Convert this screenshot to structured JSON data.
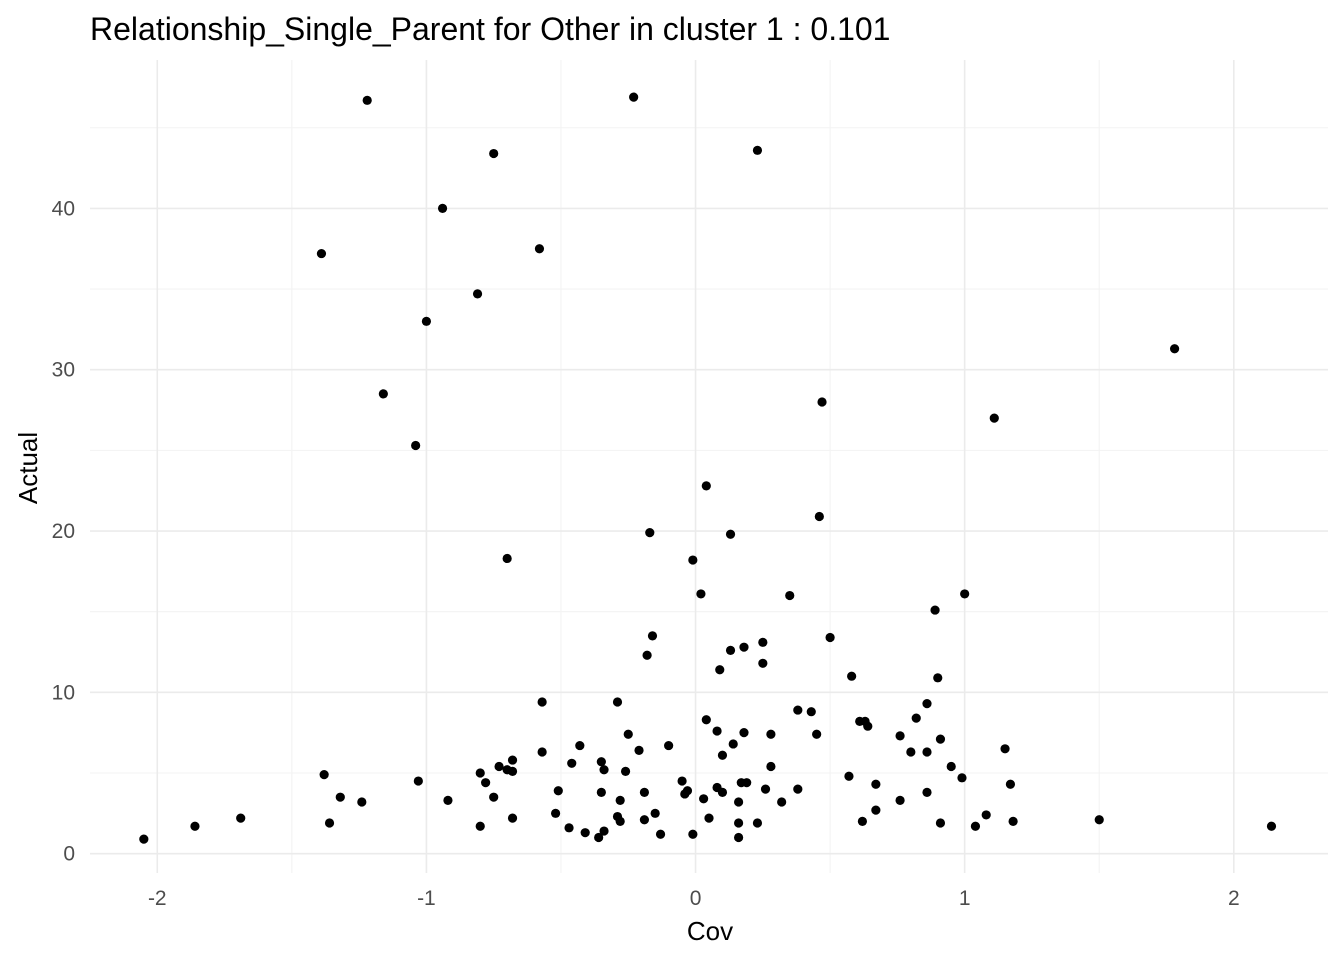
{
  "chart_data": {
    "type": "scatter",
    "title": "Relationship_Single_Parent for Other in cluster 1 : 0.101",
    "xlabel": "Cov",
    "ylabel": "Actual",
    "xlim": [
      -2.25,
      2.35
    ],
    "ylim": [
      -1.2,
      49.2
    ],
    "x_ticks": [
      -2,
      -1,
      0,
      1,
      2
    ],
    "x_tick_labels": [
      "-2",
      "-1",
      "0",
      "1",
      "2"
    ],
    "y_ticks": [
      0,
      10,
      20,
      30,
      40
    ],
    "y_tick_labels": [
      "0",
      "10",
      "20",
      "30",
      "40"
    ],
    "grid": true,
    "theme": "minimal",
    "point_color": "#000000",
    "grid_color": "#ebebeb",
    "series": [
      {
        "points": [
          [
            -2.05,
            0.9
          ],
          [
            -1.86,
            1.7
          ],
          [
            -1.69,
            2.2
          ],
          [
            -1.39,
            37.2
          ],
          [
            -1.38,
            4.9
          ],
          [
            -1.36,
            1.9
          ],
          [
            -1.32,
            3.5
          ],
          [
            -1.24,
            3.2
          ],
          [
            -1.22,
            46.7
          ],
          [
            -1.16,
            28.5
          ],
          [
            -1.04,
            25.3
          ],
          [
            -1.03,
            4.5
          ],
          [
            -1.0,
            33.0
          ],
          [
            -0.94,
            40.0
          ],
          [
            -0.92,
            3.3
          ],
          [
            -0.81,
            34.7
          ],
          [
            -0.8,
            1.7
          ],
          [
            -0.8,
            5.0
          ],
          [
            -0.78,
            4.4
          ],
          [
            -0.75,
            43.4
          ],
          [
            -0.75,
            3.5
          ],
          [
            -0.73,
            5.4
          ],
          [
            -0.7,
            5.2
          ],
          [
            -0.7,
            18.3
          ],
          [
            -0.68,
            5.1
          ],
          [
            -0.68,
            5.8
          ],
          [
            -0.68,
            2.2
          ],
          [
            -0.58,
            37.5
          ],
          [
            -0.57,
            9.4
          ],
          [
            -0.57,
            6.3
          ],
          [
            -0.52,
            2.5
          ],
          [
            -0.51,
            3.9
          ],
          [
            -0.47,
            1.6
          ],
          [
            -0.46,
            5.6
          ],
          [
            -0.43,
            6.7
          ],
          [
            -0.41,
            1.3
          ],
          [
            -0.36,
            1.0
          ],
          [
            -0.35,
            5.7
          ],
          [
            -0.35,
            3.8
          ],
          [
            -0.34,
            5.2
          ],
          [
            -0.34,
            1.4
          ],
          [
            -0.29,
            9.4
          ],
          [
            -0.29,
            2.3
          ],
          [
            -0.28,
            3.3
          ],
          [
            -0.28,
            2.0
          ],
          [
            -0.26,
            5.1
          ],
          [
            -0.25,
            7.4
          ],
          [
            -0.23,
            46.9
          ],
          [
            -0.21,
            6.4
          ],
          [
            -0.19,
            3.8
          ],
          [
            -0.19,
            2.1
          ],
          [
            -0.18,
            12.3
          ],
          [
            -0.17,
            19.9
          ],
          [
            -0.16,
            13.5
          ],
          [
            -0.15,
            2.5
          ],
          [
            -0.13,
            1.2
          ],
          [
            -0.1,
            6.7
          ],
          [
            -0.05,
            4.5
          ],
          [
            -0.04,
            3.7
          ],
          [
            -0.03,
            3.9
          ],
          [
            -0.01,
            1.2
          ],
          [
            -0.01,
            18.2
          ],
          [
            0.02,
            16.1
          ],
          [
            0.03,
            3.4
          ],
          [
            0.04,
            22.8
          ],
          [
            0.04,
            8.3
          ],
          [
            0.05,
            2.2
          ],
          [
            0.08,
            7.6
          ],
          [
            0.08,
            4.1
          ],
          [
            0.09,
            11.4
          ],
          [
            0.1,
            6.1
          ],
          [
            0.1,
            3.8
          ],
          [
            0.13,
            12.6
          ],
          [
            0.13,
            19.8
          ],
          [
            0.14,
            6.8
          ],
          [
            0.16,
            3.2
          ],
          [
            0.16,
            1.0
          ],
          [
            0.16,
            1.9
          ],
          [
            0.17,
            4.4
          ],
          [
            0.18,
            12.8
          ],
          [
            0.18,
            7.5
          ],
          [
            0.19,
            4.4
          ],
          [
            0.23,
            1.9
          ],
          [
            0.23,
            43.6
          ],
          [
            0.25,
            13.1
          ],
          [
            0.25,
            11.8
          ],
          [
            0.26,
            4.0
          ],
          [
            0.28,
            7.4
          ],
          [
            0.28,
            5.4
          ],
          [
            0.32,
            3.2
          ],
          [
            0.35,
            16.0
          ],
          [
            0.38,
            8.9
          ],
          [
            0.38,
            4.0
          ],
          [
            0.43,
            8.8
          ],
          [
            0.45,
            7.4
          ],
          [
            0.46,
            20.9
          ],
          [
            0.47,
            28.0
          ],
          [
            0.5,
            13.4
          ],
          [
            0.57,
            4.8
          ],
          [
            0.58,
            11.0
          ],
          [
            0.61,
            8.2
          ],
          [
            0.62,
            2.0
          ],
          [
            0.63,
            8.2
          ],
          [
            0.64,
            7.9
          ],
          [
            0.67,
            2.7
          ],
          [
            0.67,
            4.3
          ],
          [
            0.76,
            7.3
          ],
          [
            0.76,
            3.3
          ],
          [
            0.8,
            6.3
          ],
          [
            0.82,
            8.4
          ],
          [
            0.86,
            6.3
          ],
          [
            0.86,
            3.8
          ],
          [
            0.86,
            9.3
          ],
          [
            0.89,
            15.1
          ],
          [
            0.9,
            10.9
          ],
          [
            0.91,
            1.9
          ],
          [
            0.91,
            7.1
          ],
          [
            0.95,
            5.4
          ],
          [
            0.99,
            4.7
          ],
          [
            1.0,
            16.1
          ],
          [
            1.04,
            1.7
          ],
          [
            1.08,
            2.4
          ],
          [
            1.11,
            27.0
          ],
          [
            1.15,
            6.5
          ],
          [
            1.17,
            4.3
          ],
          [
            1.18,
            2.0
          ],
          [
            1.5,
            2.1
          ],
          [
            1.78,
            31.3
          ],
          [
            2.14,
            1.7
          ]
        ]
      }
    ]
  }
}
